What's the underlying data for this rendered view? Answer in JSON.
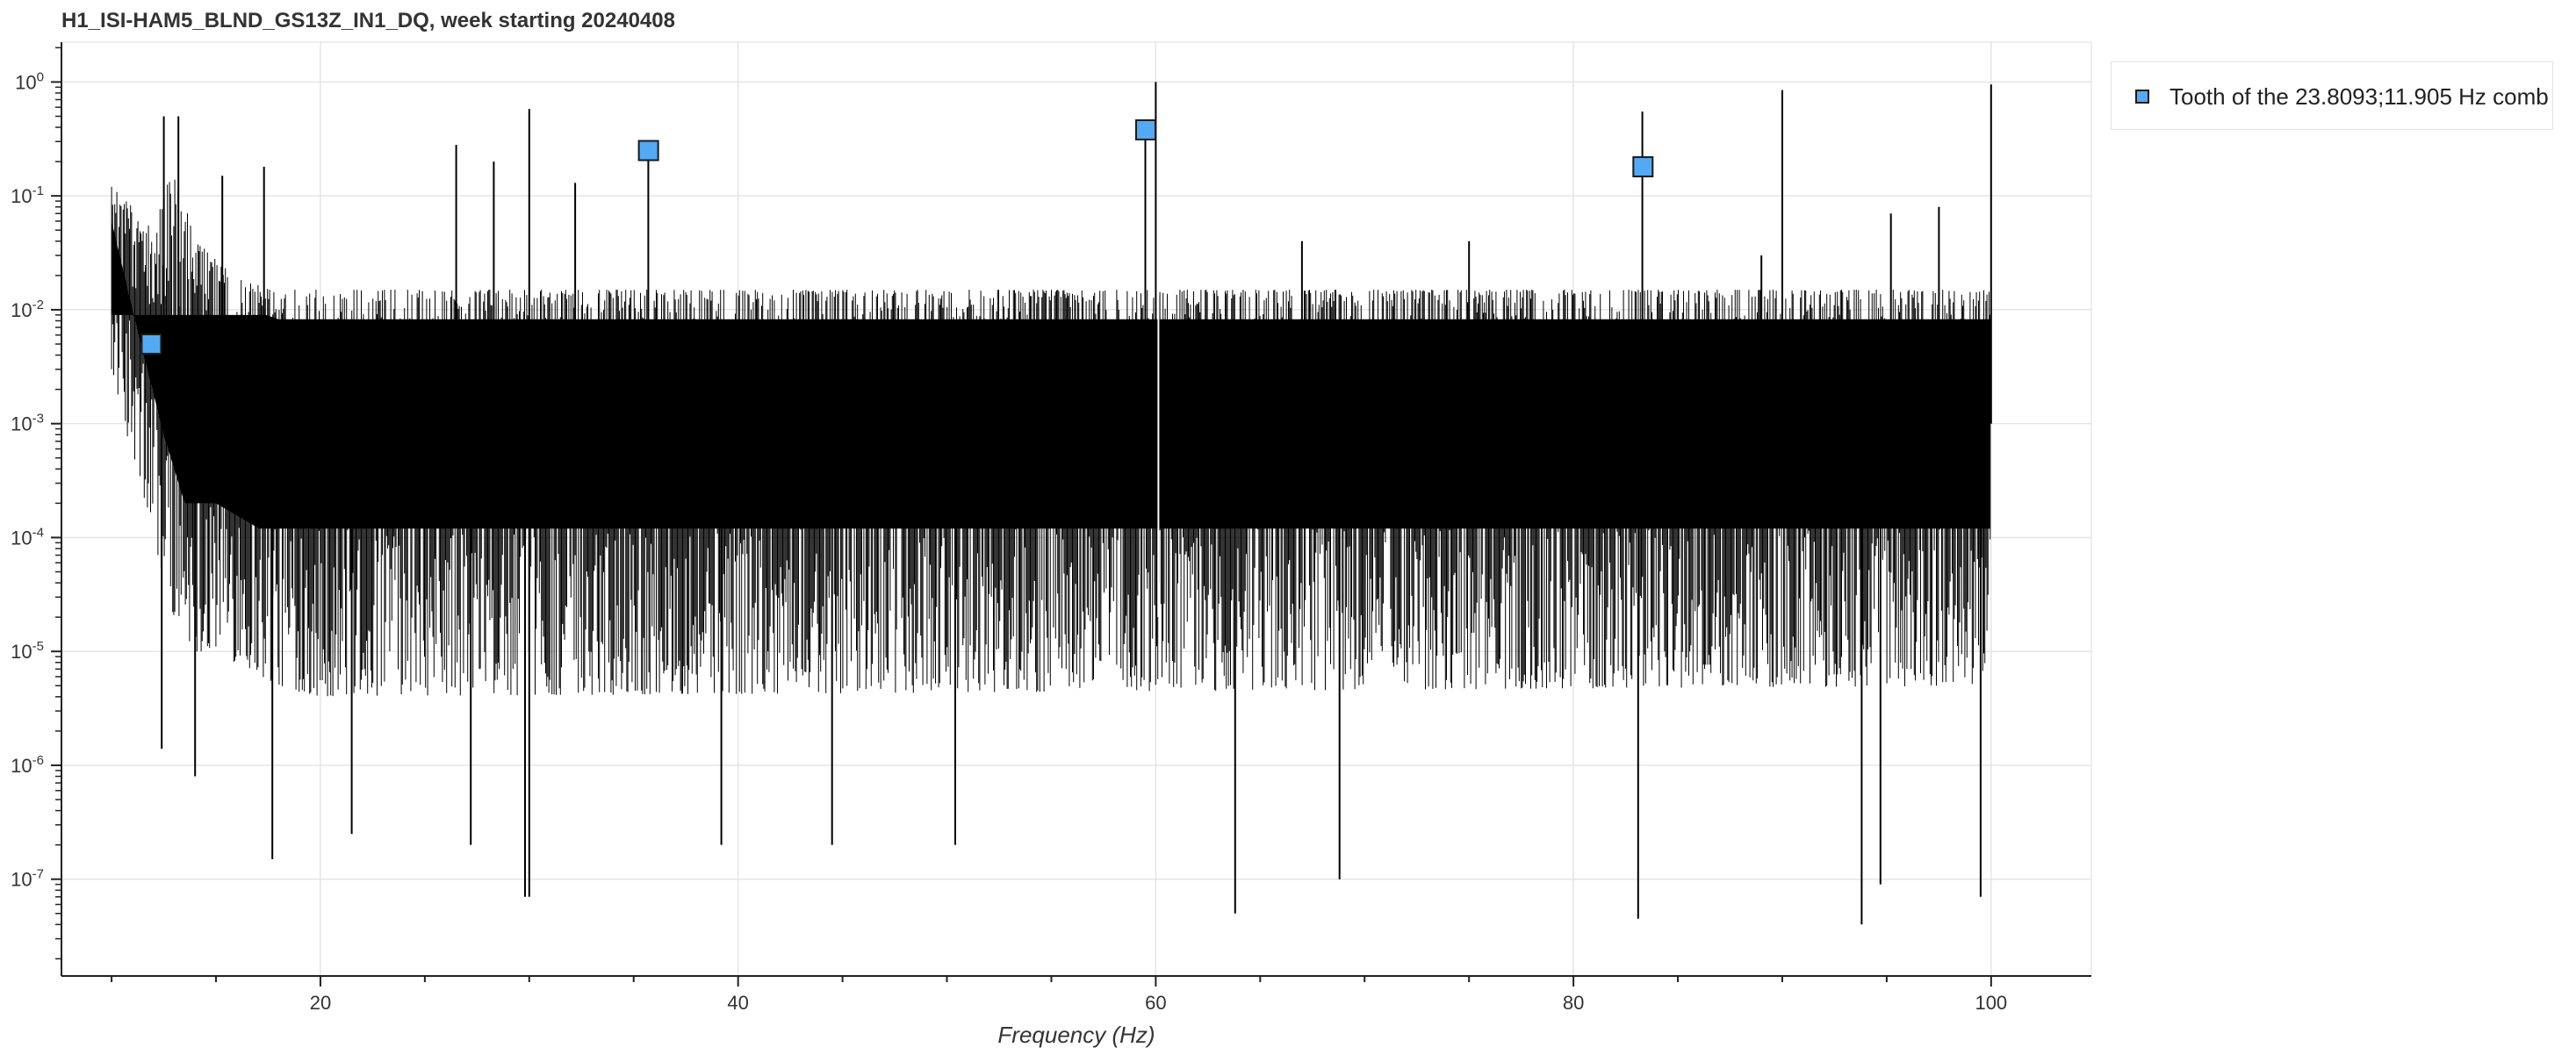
{
  "chart_data": {
    "type": "line",
    "title": "H1_ISI-HAM5_BLND_GS13Z_IN1_DQ, week starting 20240408",
    "xlabel": "Frequency (Hz)",
    "ylabel": "",
    "xlim": [
      7.6,
      104.8
    ],
    "ylim_exponent": [
      -7.85,
      0.35
    ],
    "yscale": "log",
    "grid": true,
    "x_ticks": [
      "20",
      "40",
      "60",
      "80",
      "100"
    ],
    "x_tick_values": [
      20,
      40,
      60,
      80,
      100
    ],
    "y_ticks": [
      {
        "base": "10",
        "exp": "0",
        "value": 1
      },
      {
        "base": "10",
        "exp": "-1",
        "value": 0.1
      },
      {
        "base": "10",
        "exp": "-2",
        "value": 0.01
      },
      {
        "base": "10",
        "exp": "-3",
        "value": 0.001
      },
      {
        "base": "10",
        "exp": "-4",
        "value": 0.0001
      },
      {
        "base": "10",
        "exp": "-5",
        "value": 1e-05
      },
      {
        "base": "10",
        "exp": "-6",
        "value": 1e-06
      },
      {
        "base": "10",
        "exp": "-7",
        "value": 1e-07
      }
    ],
    "spectrum": {
      "name": "",
      "color": "#000000",
      "x_range": [
        10,
        100
      ],
      "typical_range": [
        0.0001,
        0.01
      ],
      "envelope_low": [
        {
          "f": 10.0,
          "y": 0.003
        },
        {
          "f": 11.0,
          "y": 0.0005
        },
        {
          "f": 12.5,
          "y": 4e-05
        },
        {
          "f": 13.5,
          "y": 1e-05
        },
        {
          "f": 15.0,
          "y": 1e-05
        },
        {
          "f": 17.8,
          "y": 5e-06
        },
        {
          "f": 20.0,
          "y": 4e-06
        },
        {
          "f": 100.0,
          "y": 5e-06
        }
      ],
      "envelope_high": [
        {
          "f": 10.0,
          "y": 0.12
        },
        {
          "f": 11.0,
          "y": 0.08
        },
        {
          "f": 12.0,
          "y": 0.05
        },
        {
          "f": 13.0,
          "y": 0.2
        },
        {
          "f": 14.0,
          "y": 0.04
        },
        {
          "f": 16.0,
          "y": 0.02
        },
        {
          "f": 18.0,
          "y": 0.015
        },
        {
          "f": 100.0,
          "y": 0.015
        }
      ],
      "peaks": [
        {
          "f": 12.5,
          "y": 0.5
        },
        {
          "f": 13.2,
          "y": 0.5
        },
        {
          "f": 15.3,
          "y": 0.15
        },
        {
          "f": 17.3,
          "y": 0.18
        },
        {
          "f": 26.5,
          "y": 0.28
        },
        {
          "f": 28.3,
          "y": 0.2
        },
        {
          "f": 30.0,
          "y": 0.58
        },
        {
          "f": 32.2,
          "y": 0.13
        },
        {
          "f": 35.7,
          "y": 0.26
        },
        {
          "f": 59.5,
          "y": 0.4
        },
        {
          "f": 60.0,
          "y": 1.0
        },
        {
          "f": 67.0,
          "y": 0.04
        },
        {
          "f": 75.0,
          "y": 0.04
        },
        {
          "f": 83.3,
          "y": 0.55
        },
        {
          "f": 89.0,
          "y": 0.03
        },
        {
          "f": 90.0,
          "y": 0.85
        },
        {
          "f": 95.2,
          "y": 0.07
        },
        {
          "f": 97.5,
          "y": 0.08
        },
        {
          "f": 100.0,
          "y": 0.95
        }
      ],
      "dips": [
        {
          "f": 12.4,
          "y": 1.4e-06
        },
        {
          "f": 14.0,
          "y": 8e-07
        },
        {
          "f": 17.7,
          "y": 1.5e-07
        },
        {
          "f": 21.5,
          "y": 2.5e-07
        },
        {
          "f": 27.2,
          "y": 2e-07
        },
        {
          "f": 29.8,
          "y": 7e-08
        },
        {
          "f": 30.0,
          "y": 7e-08
        },
        {
          "f": 39.2,
          "y": 2e-07
        },
        {
          "f": 44.5,
          "y": 2e-07
        },
        {
          "f": 50.4,
          "y": 2e-07
        },
        {
          "f": 63.8,
          "y": 5e-08
        },
        {
          "f": 68.8,
          "y": 1e-07
        },
        {
          "f": 83.1,
          "y": 4.5e-08
        },
        {
          "f": 93.8,
          "y": 4e-08
        },
        {
          "f": 94.7,
          "y": 9e-08
        },
        {
          "f": 99.5,
          "y": 7e-08
        }
      ]
    },
    "series": [
      {
        "name": "Tooth of the 23.8093;11.905 Hz comb",
        "color": "#55a9f2",
        "marker": "square",
        "points": [
          {
            "x": 11.905,
            "y": 0.005
          },
          {
            "x": 35.71,
            "y": 0.25
          },
          {
            "x": 59.52,
            "y": 0.38
          },
          {
            "x": 83.33,
            "y": 0.18
          }
        ]
      }
    ]
  },
  "legend": {
    "label": "Tooth of the 23.8093;11.905 Hz comb",
    "marker_color": "#55a9f2"
  }
}
